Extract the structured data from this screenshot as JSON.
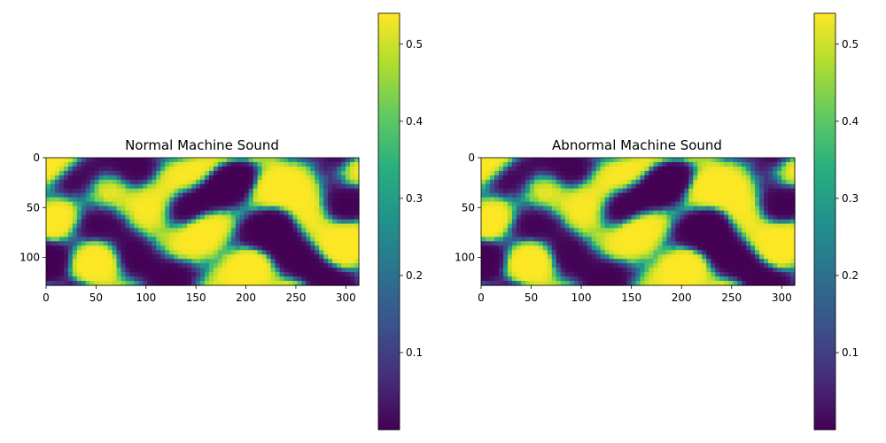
{
  "chart_data": [
    {
      "type": "heatmap",
      "title": "Normal Machine Sound",
      "xlim": [
        0,
        313
      ],
      "ylim": [
        128,
        0
      ],
      "xticks": [
        0,
        50,
        100,
        150,
        200,
        250,
        300
      ],
      "yticks": [
        0,
        50,
        100
      ],
      "colorbar": {
        "range": [
          0.0,
          0.54
        ],
        "ticks": [
          0.1,
          0.2,
          0.3,
          0.4,
          0.5
        ],
        "colormap": "viridis"
      },
      "grid": false,
      "pattern_seed": 7
    },
    {
      "type": "heatmap",
      "title": "Abnormal Machine Sound",
      "xlim": [
        0,
        313
      ],
      "ylim": [
        128,
        0
      ],
      "xticks": [
        0,
        50,
        100,
        150,
        200,
        250,
        300
      ],
      "yticks": [
        0,
        50,
        100
      ],
      "colorbar": {
        "range": [
          0.0,
          0.54
        ],
        "ticks": [
          0.1,
          0.2,
          0.3,
          0.4,
          0.5
        ],
        "colormap": "viridis"
      },
      "grid": false,
      "pattern_seed": 7
    }
  ]
}
